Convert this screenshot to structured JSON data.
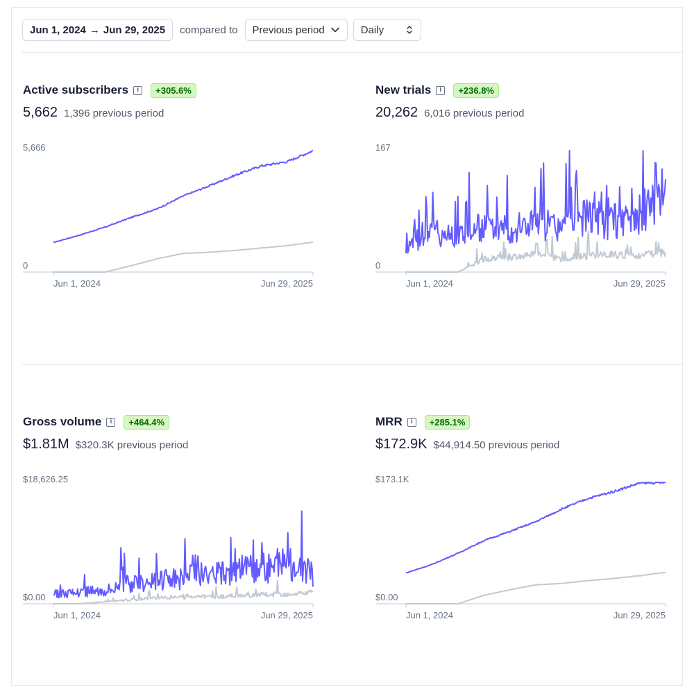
{
  "toolbar": {
    "date_start": "Jun 1, 2024",
    "date_arrow": "→",
    "date_end": "Jun 29, 2025",
    "compared_label": "compared to",
    "comparison": "Previous period",
    "interval": "Daily"
  },
  "colors": {
    "current": "#635bff",
    "previous": "#c1c9d2",
    "badge_bg": "#d7f7c2",
    "badge_text": "#05690d"
  },
  "icons": {
    "info": "info-icon",
    "dropdown": "chevron-down-icon",
    "stepper": "chevron-up-down-icon"
  },
  "charts": [
    {
      "title": "Active subscribers",
      "change": "+305.6%",
      "value": "5,662",
      "previous": "1,396 previous period",
      "y_max_label": "5,666",
      "y_min_label": "0",
      "x_start_label": "Jun 1, 2024",
      "x_end_label": "Jun 29, 2025"
    },
    {
      "title": "New trials",
      "change": "+236.8%",
      "value": "20,262",
      "previous": "6,016 previous period",
      "y_max_label": "167",
      "y_min_label": "0",
      "x_start_label": "Jun 1, 2024",
      "x_end_label": "Jun 29, 2025"
    },
    {
      "title": "Gross volume",
      "change": "+464.4%",
      "value": "$1.81M",
      "previous": "$320.3K previous period",
      "y_max_label": "$18,626.25",
      "y_min_label": "$0.00",
      "x_start_label": "Jun 1, 2024",
      "x_end_label": "Jun 29, 2025"
    },
    {
      "title": "MRR",
      "change": "+285.1%",
      "value": "$172.9K",
      "previous": "$44,914.50 previous period",
      "y_max_label": "$173.1K",
      "y_min_label": "$0.00",
      "x_start_label": "Jun 1, 2024",
      "x_end_label": "Jun 29, 2025"
    }
  ],
  "chart_data": [
    {
      "type": "line",
      "title": "Active subscribers",
      "ylim": [
        0,
        5666
      ],
      "x_range": [
        "Jun 1, 2024",
        "Jun 29, 2025"
      ],
      "x": [
        0,
        0.1,
        0.2,
        0.3,
        0.4,
        0.5,
        0.6,
        0.7,
        0.8,
        0.9,
        1.0
      ],
      "series": [
        {
          "values": [
            1380,
            1720,
            2100,
            2550,
            2950,
            3550,
            4020,
            4520,
            4950,
            5150,
            5662
          ]
        },
        {
          "values": [
            0,
            0,
            0,
            300,
            620,
            870,
            920,
            1010,
            1120,
            1230,
            1396
          ]
        }
      ],
      "grid": false,
      "legend": "none"
    },
    {
      "type": "line",
      "title": "New trials",
      "ylim": [
        0,
        167
      ],
      "x_range": [
        "Jun 1, 2024",
        "Jun 29, 2025"
      ],
      "x": [
        0,
        0.1,
        0.2,
        0.3,
        0.4,
        0.5,
        0.6,
        0.7,
        0.8,
        0.9,
        1.0
      ],
      "series": [
        {
          "values": [
            35,
            55,
            50,
            62,
            58,
            70,
            60,
            80,
            65,
            75,
            110
          ]
        },
        {
          "values": [
            0,
            0,
            0,
            18,
            20,
            25,
            18,
            22,
            24,
            22,
            28
          ]
        }
      ],
      "grid": false,
      "legend": "none"
    },
    {
      "type": "line",
      "title": "Gross volume",
      "ylim": [
        0,
        18626.25
      ],
      "x_range": [
        "Jun 1, 2024",
        "Jun 29, 2025"
      ],
      "x": [
        0,
        0.1,
        0.2,
        0.3,
        0.4,
        0.5,
        0.6,
        0.7,
        0.8,
        0.9,
        1.0
      ],
      "series": [
        {
          "values": [
            1500,
            1800,
            2200,
            3200,
            3500,
            4000,
            4500,
            5000,
            5500,
            6500,
            4500
          ]
        },
        {
          "values": [
            0,
            0,
            300,
            600,
            900,
            1000,
            1100,
            1200,
            1400,
            1500,
            1700
          ]
        }
      ],
      "grid": false,
      "legend": "none"
    },
    {
      "type": "line",
      "title": "MRR",
      "ylim": [
        0,
        173100
      ],
      "x_range": [
        "Jun 1, 2024",
        "Jun 29, 2025"
      ],
      "x": [
        0,
        0.1,
        0.2,
        0.3,
        0.4,
        0.5,
        0.6,
        0.7,
        0.8,
        0.9,
        1.0
      ],
      "series": [
        {
          "values": [
            44000,
            56000,
            72000,
            90000,
            103000,
            117000,
            135000,
            150000,
            160000,
            172000,
            172900
          ]
        },
        {
          "values": [
            0,
            0,
            0,
            12000,
            20000,
            27000,
            29000,
            33000,
            36000,
            40000,
            44914.5
          ]
        }
      ],
      "grid": false,
      "legend": "none"
    }
  ]
}
